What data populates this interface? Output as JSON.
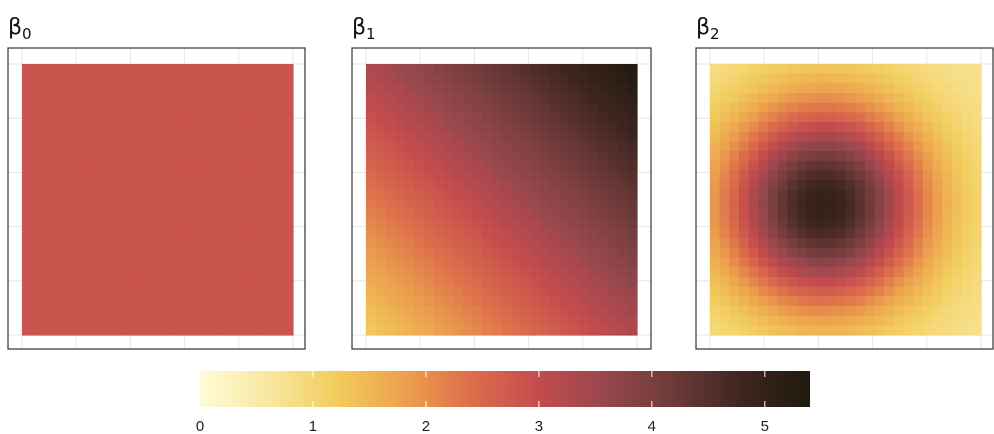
{
  "chart_data": [
    {
      "type": "heatmap",
      "title": "β",
      "title_subscript": "0",
      "grid": true,
      "axes_ticks_shown": false,
      "description_values": "constant surface",
      "constant_value": 2.85
    },
    {
      "type": "heatmap",
      "title": "β",
      "title_subscript": "1",
      "grid": true,
      "axes_ticks_shown": false,
      "gradient": "diagonal, low at bottom-left, high at top-right",
      "corner_values": {
        "bottom_left": 1.2,
        "top_right": 5.4
      }
    },
    {
      "type": "heatmap",
      "title": "β",
      "title_subscript": "2",
      "grid": true,
      "axes_ticks_shown": false,
      "gradient": "radial, high in center, low at edges",
      "center_value": 5.0,
      "edge_value": 0.7,
      "peak_location": "center-left"
    }
  ],
  "colorbar": {
    "orientation": "horizontal",
    "placement": "bottom",
    "range": [
      0,
      5.4
    ],
    "ticks": [
      0,
      1,
      2,
      3,
      4,
      5
    ],
    "tick_labels": [
      "0",
      "1",
      "2",
      "3",
      "4",
      "5"
    ],
    "colors": [
      "#fefbd8",
      "#f9e8a0",
      "#f2cd5d",
      "#eda14d",
      "#dd6e4c",
      "#c44b4e",
      "#95474d",
      "#6b3a38",
      "#3f2520",
      "#1e1a0d"
    ]
  },
  "colors": {
    "panel_border": "#333333",
    "grid": "#e6e6e6",
    "beta0_fill": "#d7654b"
  }
}
